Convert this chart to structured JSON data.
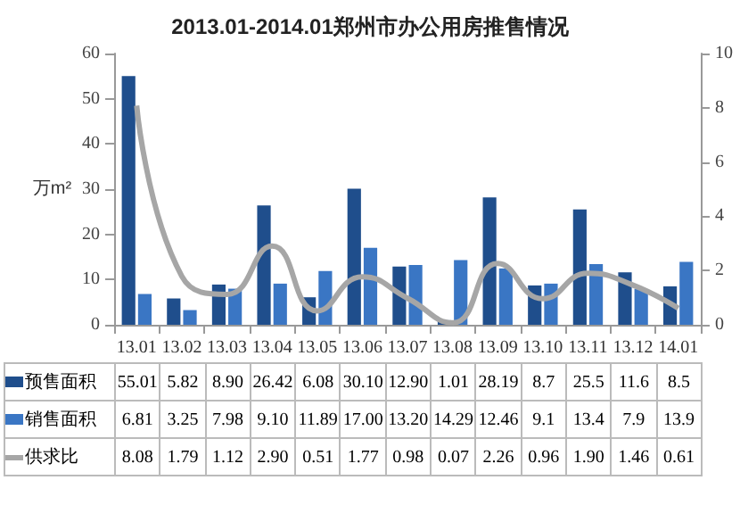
{
  "chart_data": {
    "type": "bar",
    "title": "2013.01-2014.01郑州市办公用房推售情况",
    "ylabel": "万m²",
    "categories": [
      "13.01",
      "13.02",
      "13.03",
      "13.04",
      "13.05",
      "13.06",
      "13.07",
      "13.08",
      "13.09",
      "13.10",
      "13.11",
      "13.12",
      "14.01"
    ],
    "series": [
      {
        "name": "预售面积",
        "color": "#1f4e8c",
        "values": [
          55.01,
          5.82,
          8.9,
          26.42,
          6.08,
          30.1,
          12.9,
          1.01,
          28.19,
          8.7,
          25.5,
          11.6,
          8.5
        ],
        "value_labels": [
          "55.01",
          "5.82",
          "8.90",
          "26.42",
          "6.08",
          "30.10",
          "12.90",
          "1.01",
          "28.19",
          "8.7",
          "25.5",
          "11.6",
          "8.5"
        ]
      },
      {
        "name": "销售面积",
        "color": "#3a76c4",
        "values": [
          6.81,
          3.25,
          7.98,
          9.1,
          11.89,
          17.0,
          13.2,
          14.29,
          12.46,
          9.1,
          13.4,
          7.9,
          13.9
        ],
        "value_labels": [
          "6.81",
          "3.25",
          "7.98",
          "9.10",
          "11.89",
          "17.00",
          "13.20",
          "14.29",
          "12.46",
          "9.1",
          "13.4",
          "7.9",
          "13.9"
        ]
      },
      {
        "name": "供求比",
        "type": "line",
        "axis": "y2",
        "color": "#a6a6a6",
        "values": [
          8.08,
          1.79,
          1.12,
          2.9,
          0.51,
          1.77,
          0.98,
          0.07,
          2.26,
          0.96,
          1.9,
          1.46,
          0.61
        ],
        "value_labels": [
          "8.08",
          "1.79",
          "1.12",
          "2.90",
          "0.51",
          "1.77",
          "0.98",
          "0.07",
          "2.26",
          "0.96",
          "1.90",
          "1.46",
          "0.61"
        ]
      }
    ],
    "ylim": [
      0,
      60
    ],
    "yticks": [
      0,
      10,
      20,
      30,
      40,
      50,
      60
    ],
    "y2lim": [
      0,
      10
    ],
    "y2ticks": [
      0,
      2,
      4,
      6,
      8,
      10
    ],
    "grid": false,
    "legend": "bottom",
    "marker": "none",
    "line_style": "solid"
  }
}
